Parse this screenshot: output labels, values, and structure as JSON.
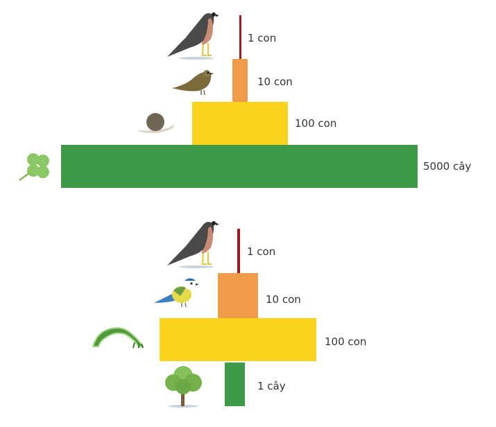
{
  "colors": {
    "top": "#a31a1f",
    "carnivore": "#ef9c4a",
    "herbivore": "#fcd31c",
    "producer": "#3d9b47"
  },
  "pyramids": [
    {
      "levels": [
        {
          "organism": "hawk",
          "icon": "hawk-icon",
          "label": "1 con"
        },
        {
          "organism": "thrush",
          "icon": "thrush-icon",
          "label": "10 con"
        },
        {
          "organism": "snail",
          "icon": "snail-icon",
          "label": "100 con"
        },
        {
          "organism": "clover",
          "icon": "clover-icon",
          "label": "5000 cây"
        }
      ]
    },
    {
      "levels": [
        {
          "organism": "hawk",
          "icon": "hawk-icon",
          "label": "1 con"
        },
        {
          "organism": "blue tit",
          "icon": "blue-tit-icon",
          "label": "10 con"
        },
        {
          "organism": "caterpillar",
          "icon": "caterpillar-icon",
          "label": "100 con"
        },
        {
          "organism": "tree",
          "icon": "tree-icon",
          "label": "1 cây"
        }
      ]
    }
  ]
}
